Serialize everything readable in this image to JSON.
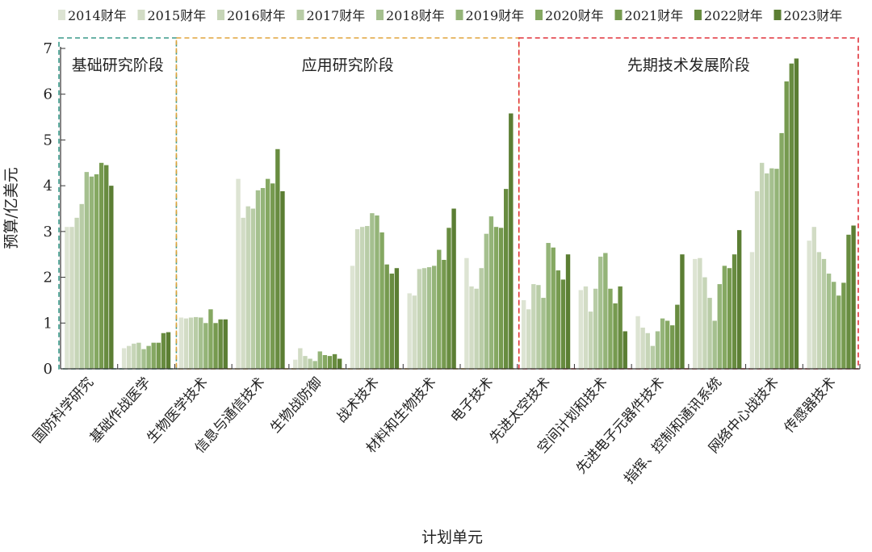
{
  "chart_data": {
    "type": "bar",
    "title": "",
    "xlabel": "计划单元",
    "ylabel": "预算/亿美元",
    "ylim": [
      0,
      7
    ],
    "yticks": [
      0,
      1,
      2,
      3,
      4,
      5,
      6,
      7
    ],
    "grid": false,
    "legend_position": "top",
    "series_names": [
      "2014财年",
      "2015财年",
      "2016财年",
      "2017财年",
      "2018财年",
      "2019财年",
      "2020财年",
      "2021财年",
      "2022财年",
      "2023财年"
    ],
    "colors": [
      "#dde4d3",
      "#d2dcc5",
      "#c6d5b7",
      "#b8cca6",
      "#a5c08f",
      "#94b478",
      "#85a862",
      "#769a4f",
      "#688c40",
      "#5b7e33"
    ],
    "categories": [
      "国防科学研究",
      "基础作战医学",
      "生物医学技术",
      "信息与通信技术",
      "生物战防御",
      "战术技术",
      "材料和生物技术",
      "电子技术",
      "先进太空技术",
      "空间计划和技术",
      "先进电子元器件技术",
      "指挥、控制和通讯系统",
      "网络中心战技术",
      "传感器技术"
    ],
    "values": [
      [
        3.1,
        3.1,
        3.3,
        3.6,
        4.3,
        4.2,
        4.25,
        4.5,
        4.45,
        4.0
      ],
      [
        0.45,
        0.5,
        0.55,
        0.57,
        0.43,
        0.5,
        0.57,
        0.57,
        0.78,
        0.8
      ],
      [
        1.12,
        1.1,
        1.12,
        1.13,
        1.12,
        1.0,
        1.3,
        1.0,
        1.08,
        1.08
      ],
      [
        4.15,
        3.3,
        3.55,
        3.5,
        3.9,
        3.95,
        4.15,
        4.05,
        4.8,
        3.88
      ],
      [
        0.2,
        0.45,
        0.28,
        0.22,
        0.17,
        0.38,
        0.3,
        0.28,
        0.32,
        0.22
      ],
      [
        2.25,
        3.05,
        3.1,
        3.12,
        3.4,
        3.35,
        2.98,
        2.28,
        2.08,
        2.2
      ],
      [
        1.65,
        1.6,
        2.18,
        2.2,
        2.22,
        2.25,
        2.6,
        2.38,
        3.08,
        3.5
      ],
      [
        2.42,
        1.8,
        1.75,
        2.2,
        2.95,
        3.33,
        3.1,
        3.08,
        3.93,
        5.58
      ],
      [
        1.5,
        1.3,
        1.85,
        1.83,
        1.55,
        2.75,
        2.65,
        2.15,
        1.95,
        2.5
      ],
      [
        1.72,
        1.8,
        1.25,
        1.75,
        2.45,
        2.53,
        1.75,
        1.43,
        1.8,
        0.82
      ],
      [
        1.15,
        0.9,
        0.78,
        0.5,
        0.82,
        1.1,
        1.05,
        0.95,
        1.4,
        2.5
      ],
      [
        2.4,
        2.42,
        2.0,
        1.55,
        1.05,
        1.85,
        2.25,
        2.2,
        2.5,
        3.03
      ],
      [
        2.55,
        3.88,
        4.5,
        4.27,
        4.38,
        4.37,
        5.15,
        6.28,
        6.67,
        6.78
      ],
      [
        2.8,
        3.1,
        2.55,
        2.4,
        2.08,
        1.9,
        1.6,
        1.88,
        2.93,
        3.13
      ]
    ],
    "regions": [
      {
        "label": "基础研究阶段",
        "from": 0,
        "to": 1,
        "color": "#3a9a8a"
      },
      {
        "label": "应用研究阶段",
        "from": 2,
        "to": 7,
        "color": "#e0a43c"
      },
      {
        "label": "先期技术发展阶段",
        "from": 8,
        "to": 13,
        "color": "#e0323a"
      }
    ]
  }
}
